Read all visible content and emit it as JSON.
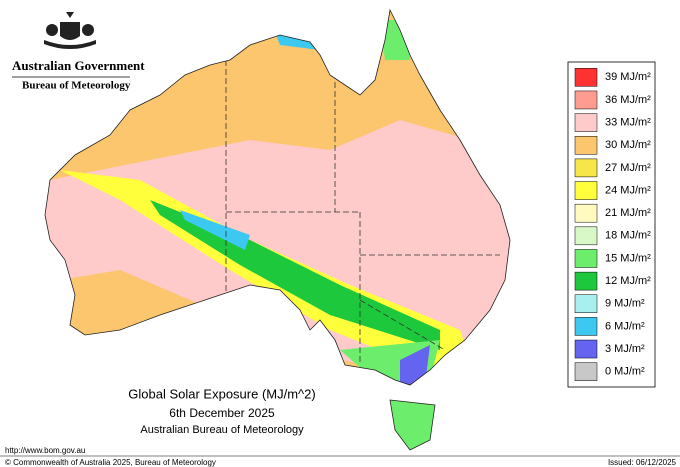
{
  "header": {
    "government": "Australian Government",
    "bureau": "Bureau of Meteorology"
  },
  "legend": {
    "items": [
      {
        "label": "39 MJ/m²",
        "color": "#ff3232"
      },
      {
        "label": "36 MJ/m²",
        "color": "#ff9c92"
      },
      {
        "label": "33 MJ/m²",
        "color": "#ffcaca"
      },
      {
        "label": "30 MJ/m²",
        "color": "#fbc66e"
      },
      {
        "label": "27 MJ/m²",
        "color": "#f7e64a"
      },
      {
        "label": "24 MJ/m²",
        "color": "#ffff3c"
      },
      {
        "label": "21 MJ/m²",
        "color": "#fffac0"
      },
      {
        "label": "18 MJ/m²",
        "color": "#d8f8c8"
      },
      {
        "label": "15 MJ/m²",
        "color": "#6cee6c"
      },
      {
        "label": "12 MJ/m²",
        "color": "#1ec83c"
      },
      {
        "label": "9 MJ/m²",
        "color": "#a8f0f0"
      },
      {
        "label": "6 MJ/m²",
        "color": "#3cc8f0"
      },
      {
        "label": "3 MJ/m²",
        "color": "#6464f0"
      },
      {
        "label": "0 MJ/m²",
        "color": "#c8c8c8"
      }
    ]
  },
  "caption": {
    "title": "Global Solar Exposure (MJ/m^2)",
    "date": "6th December 2025",
    "organisation": "Australian Bureau of Meteorology"
  },
  "footer": {
    "url": "http://www.bom.gov.au",
    "copyright": "© Commonwealth of Australia 2025, Bureau of Meteorology",
    "issued": "Issued: 06/12/2025"
  }
}
